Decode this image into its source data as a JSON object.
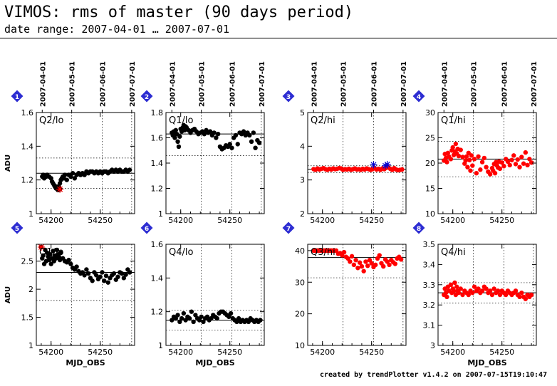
{
  "page": {
    "title": "VIMOS: rms of master (90 days period)",
    "subtitle": "date range: 2007-04-01 … 2007-07-01",
    "footer": "created by trendPlotter v1.4.2 on 2007-07-15T19:10:47"
  },
  "colors": {
    "black": "#000000",
    "red": "#ff0000",
    "blue": "#0000cc",
    "badge": "#2d2dd2"
  },
  "top_date_labels": [
    "2007-04-01",
    "2007-05-01",
    "2007-06-01",
    "2007-07-01"
  ],
  "top_date_mjd": [
    54191,
    54221,
    54252,
    54282
  ],
  "chart_data": [
    {
      "type": "scatter",
      "badge": "1",
      "label": "Q2/lo",
      "color": "#000000",
      "xlim": [
        54185,
        54285
      ],
      "ylim": [
        1,
        1.6
      ],
      "yticks": [
        "1",
        "1.2",
        "1.4",
        "1.6"
      ],
      "xticks": [
        "54200",
        "54250"
      ],
      "ylabel": "ADU",
      "xlabel": "",
      "median": 1.24,
      "band": [
        1.15,
        1.33
      ],
      "x": [
        54191,
        54192,
        54193,
        54195,
        54196,
        54198,
        54200,
        54201,
        54202,
        54203,
        54204,
        54205,
        54206,
        54207,
        54208,
        54209,
        54210,
        54211,
        54212,
        54213,
        54214,
        54216,
        54218,
        54220,
        54222,
        54224,
        54226,
        54228,
        54230,
        54232,
        54234,
        54236,
        54238,
        54240,
        54242,
        54244,
        54246,
        54248,
        54250,
        54252,
        54254,
        54256,
        54258,
        54260,
        54262,
        54264,
        54266,
        54268,
        54270,
        54272,
        54274,
        54276,
        54278,
        54280
      ],
      "y": [
        1.22,
        1.23,
        1.21,
        1.22,
        1.23,
        1.22,
        1.21,
        1.19,
        1.18,
        1.17,
        1.16,
        1.15,
        1.16,
        1.14,
        1.16,
        1.18,
        1.2,
        1.21,
        1.22,
        1.21,
        1.23,
        1.2,
        1.23,
        1.22,
        1.24,
        1.21,
        1.23,
        1.24,
        1.23,
        1.24,
        1.23,
        1.25,
        1.24,
        1.25,
        1.25,
        1.24,
        1.25,
        1.24,
        1.25,
        1.24,
        1.25,
        1.25,
        1.24,
        1.25,
        1.26,
        1.25,
        1.26,
        1.25,
        1.26,
        1.25,
        1.25,
        1.26,
        1.25,
        1.26
      ],
      "outliers": {
        "x": [
          54209
        ],
        "y": [
          1.145
        ]
      }
    },
    {
      "type": "scatter",
      "badge": "2",
      "label": "Q1/lo",
      "color": "#000000",
      "xlim": [
        54185,
        54285
      ],
      "ylim": [
        1,
        1.8
      ],
      "yticks": [
        "1",
        "1.2",
        "1.4",
        "1.6",
        "1.8"
      ],
      "xticks": [
        "54200",
        "54250"
      ],
      "ylabel": "",
      "xlabel": "",
      "median": 1.63,
      "band": [
        1.46,
        1.8
      ],
      "x": [
        54191,
        54192,
        54193,
        54194,
        54195,
        54196,
        54197,
        54198,
        54199,
        54200,
        54201,
        54202,
        54203,
        54204,
        54205,
        54206,
        54208,
        54210,
        54212,
        54214,
        54216,
        54218,
        54220,
        54222,
        54224,
        54226,
        54228,
        54230,
        54232,
        54234,
        54236,
        54238,
        54240,
        54242,
        54244,
        54246,
        54248,
        54250,
        54252,
        54254,
        54256,
        54258,
        54260,
        54262,
        54264,
        54266,
        54268,
        54270,
        54272,
        54274,
        54276,
        54278,
        54280
      ],
      "y": [
        1.64,
        1.62,
        1.65,
        1.6,
        1.66,
        1.63,
        1.57,
        1.53,
        1.61,
        1.67,
        1.65,
        1.68,
        1.7,
        1.66,
        1.69,
        1.68,
        1.66,
        1.64,
        1.66,
        1.67,
        1.65,
        1.63,
        1.64,
        1.65,
        1.63,
        1.66,
        1.64,
        1.65,
        1.62,
        1.64,
        1.6,
        1.63,
        1.53,
        1.51,
        1.52,
        1.54,
        1.53,
        1.55,
        1.52,
        1.6,
        1.62,
        1.55,
        1.64,
        1.63,
        1.65,
        1.62,
        1.64,
        1.62,
        1.57,
        1.64,
        1.52,
        1.58,
        1.56
      ]
    },
    {
      "type": "scatter",
      "badge": "3",
      "label": "Q2/hi",
      "color": "#ff0000",
      "xlim": [
        54185,
        54285
      ],
      "ylim": [
        2,
        5
      ],
      "yticks": [
        "2",
        "3",
        "4",
        "5"
      ],
      "xticks": [
        "54200",
        "54250"
      ],
      "ylabel": "",
      "xlabel": "",
      "median": 3.32,
      "band": [
        3.22,
        3.42
      ],
      "x": [
        54191,
        54193,
        54195,
        54197,
        54199,
        54201,
        54203,
        54205,
        54207,
        54209,
        54211,
        54213,
        54215,
        54217,
        54219,
        54221,
        54223,
        54225,
        54227,
        54229,
        54231,
        54233,
        54235,
        54237,
        54239,
        54241,
        54243,
        54245,
        54247,
        54249,
        54251,
        54253,
        54255,
        54257,
        54259,
        54261,
        54263,
        54265,
        54267,
        54269,
        54271,
        54273,
        54275,
        54277,
        54279,
        54281
      ],
      "y": [
        3.32,
        3.3,
        3.34,
        3.31,
        3.33,
        3.35,
        3.32,
        3.3,
        3.33,
        3.31,
        3.34,
        3.32,
        3.33,
        3.35,
        3.34,
        3.3,
        3.32,
        3.31,
        3.33,
        3.3,
        3.32,
        3.34,
        3.31,
        3.32,
        3.3,
        3.33,
        3.31,
        3.34,
        3.32,
        3.3,
        3.32,
        3.35,
        3.31,
        3.33,
        3.3,
        3.34,
        3.32,
        3.36,
        3.38,
        3.33,
        3.3,
        3.35,
        3.31,
        3.29,
        3.3,
        3.31
      ],
      "outliers": {
        "x": [
          54252,
          54264,
          54266
        ],
        "y": [
          3.45,
          3.42,
          3.46
        ],
        "color": "#0000cc"
      }
    },
    {
      "type": "scatter",
      "badge": "4",
      "label": "Q1/hi",
      "color": "#ff0000",
      "xlim": [
        54185,
        54285
      ],
      "ylim": [
        10,
        30
      ],
      "yticks": [
        "10",
        "15",
        "20",
        "25",
        "30"
      ],
      "xticks": [
        "54200",
        "54250"
      ],
      "ylabel": "",
      "xlabel": "",
      "median": 20.8,
      "band": [
        17.3,
        24.3
      ],
      "x": [
        54191,
        54192,
        54193,
        54194,
        54195,
        54196,
        54198,
        54199,
        54200,
        54201,
        54202,
        54203,
        54204,
        54205,
        54206,
        54208,
        54210,
        54212,
        54213,
        54214,
        54215,
        54216,
        54217,
        54218,
        54219,
        54220,
        54222,
        54224,
        54226,
        54228,
        54230,
        54232,
        54234,
        54236,
        54238,
        54240,
        54241,
        54242,
        54243,
        54244,
        54245,
        54246,
        54247,
        54248,
        54250,
        54252,
        54254,
        54256,
        54258,
        54260,
        54262,
        54264,
        54266,
        54268,
        54270,
        54272,
        54274,
        54276,
        54278,
        54280
      ],
      "y": [
        20.5,
        21.8,
        21,
        20.2,
        22,
        21.3,
        20.8,
        22.5,
        23.1,
        21.6,
        22.3,
        23.8,
        21.9,
        22.8,
        21.4,
        22.6,
        21.2,
        19.9,
        20.5,
        21.3,
        19.2,
        22,
        20.6,
        18.5,
        21.5,
        19.5,
        20.8,
        18,
        21.3,
        18.7,
        20.2,
        21,
        19.2,
        18.3,
        17.8,
        19,
        18.5,
        19.8,
        18,
        20.2,
        19.5,
        19.1,
        20.3,
        18.9,
        20.1,
        19.4,
        20.8,
        20.3,
        19.6,
        20.6,
        21.5,
        19.8,
        20.7,
        19.2,
        21.2,
        19.9,
        22.1,
        19.6,
        20.8,
        20.1
      ]
    },
    {
      "type": "scatter",
      "badge": "5",
      "label": "Q1/lo",
      "color": "#000000",
      "xlim": [
        54185,
        54285
      ],
      "ylim": [
        1,
        2.8
      ],
      "yticks": [
        "1",
        "1.5",
        "2",
        "2.5"
      ],
      "xticks": [
        "54200",
        "54250"
      ],
      "ylabel": "ADU",
      "xlabel": "MJD_OBS",
      "median": 2.3,
      "band": [
        1.8,
        2.8
      ],
      "x": [
        54191,
        54192,
        54193,
        54194,
        54195,
        54196,
        54197,
        54198,
        54199,
        54200,
        54201,
        54202,
        54203,
        54204,
        54205,
        54206,
        54207,
        54208,
        54209,
        54210,
        54212,
        54214,
        54216,
        54218,
        54220,
        54222,
        54224,
        54226,
        54228,
        54230,
        54232,
        54234,
        54236,
        54238,
        54240,
        54242,
        54244,
        54246,
        54248,
        54250,
        54252,
        54254,
        54256,
        54258,
        54260,
        54262,
        54264,
        54266,
        54268,
        54270,
        54272,
        54274,
        54276,
        54278,
        54280
      ],
      "y": [
        2.55,
        2.6,
        2.45,
        2.7,
        2.5,
        2.65,
        2.58,
        2.52,
        2.62,
        2.45,
        2.55,
        2.68,
        2.5,
        2.6,
        2.55,
        2.7,
        2.62,
        2.58,
        2.52,
        2.65,
        2.55,
        2.5,
        2.48,
        2.52,
        2.45,
        2.38,
        2.35,
        2.4,
        2.32,
        2.28,
        2.3,
        2.25,
        2.35,
        2.28,
        2.2,
        2.15,
        2.3,
        2.25,
        2.18,
        2.22,
        2.3,
        2.15,
        2.24,
        2.12,
        2.2,
        2.25,
        2.28,
        2.17,
        2.22,
        2.3,
        2.28,
        2.2,
        2.26,
        2.35,
        2.3
      ],
      "outliers": {
        "x": [
          54190
        ],
        "y": [
          2.75
        ]
      }
    },
    {
      "type": "scatter",
      "badge": "6",
      "label": "Q4/lo",
      "color": "#000000",
      "xlim": [
        54185,
        54285
      ],
      "ylim": [
        1,
        1.6
      ],
      "yticks": [
        "1",
        "1.2",
        "1.4",
        "1.6"
      ],
      "xticks": [
        "54200",
        "54250"
      ],
      "ylabel": "",
      "xlabel": "MJD_OBS",
      "median": 1.15,
      "band": [
        1.09,
        1.21
      ],
      "x": [
        54191,
        54193,
        54195,
        54197,
        54199,
        54201,
        54203,
        54205,
        54207,
        54209,
        54211,
        54213,
        54215,
        54217,
        54219,
        54221,
        54223,
        54225,
        54227,
        54229,
        54231,
        54233,
        54235,
        54237,
        54239,
        54241,
        54243,
        54245,
        54247,
        54249,
        54251,
        54253,
        54255,
        54257,
        54259,
        54261,
        54263,
        54265,
        54267,
        54269,
        54271,
        54273,
        54275,
        54277,
        54279,
        54281
      ],
      "y": [
        1.15,
        1.17,
        1.16,
        1.18,
        1.14,
        1.16,
        1.19,
        1.15,
        1.17,
        1.16,
        1.2,
        1.14,
        1.18,
        1.16,
        1.15,
        1.17,
        1.14,
        1.16,
        1.17,
        1.15,
        1.16,
        1.18,
        1.17,
        1.16,
        1.19,
        1.2,
        1.2,
        1.19,
        1.18,
        1.17,
        1.19,
        1.16,
        1.15,
        1.14,
        1.16,
        1.14,
        1.15,
        1.14,
        1.15,
        1.14,
        1.16,
        1.15,
        1.14,
        1.15,
        1.14,
        1.15
      ]
    },
    {
      "type": "scatter",
      "badge": "7",
      "label": "Q3/hi",
      "color": "#ff0000",
      "xlim": [
        54185,
        54285
      ],
      "ylim": [
        10,
        42
      ],
      "yticks": [
        "10",
        "20",
        "30",
        "40"
      ],
      "xticks": [
        "54200",
        "54250"
      ],
      "ylabel": "",
      "xlabel": "",
      "median": 37.8,
      "band": [
        31.4,
        44
      ],
      "x": [
        54191,
        54192,
        54193,
        54194,
        54195,
        54196,
        54197,
        54198,
        54199,
        54200,
        54201,
        54202,
        54203,
        54204,
        54205,
        54206,
        54207,
        54208,
        54209,
        54210,
        54212,
        54214,
        54216,
        54218,
        54220,
        54222,
        54224,
        54226,
        54228,
        54230,
        54232,
        54234,
        54236,
        54238,
        54240,
        54242,
        54244,
        54246,
        54248,
        54250,
        54252,
        54254,
        54256,
        54258,
        54260,
        54262,
        54264,
        54266,
        54268,
        54270,
        54272,
        54274,
        54276,
        54278,
        54280
      ],
      "y": [
        40,
        40,
        40,
        40,
        40,
        40,
        40,
        40,
        40,
        40,
        40,
        40,
        40,
        40,
        40,
        40,
        40,
        40,
        40,
        40,
        40,
        40,
        39,
        39.2,
        38.5,
        39.5,
        38,
        37.5,
        36.5,
        38.2,
        35.5,
        37,
        34.5,
        36.2,
        35,
        33.5,
        36.5,
        35.2,
        37,
        36,
        34.8,
        35.5,
        37.5,
        38.5,
        36,
        35,
        37.2,
        36.5,
        35.5,
        37,
        36.3,
        35.8,
        37.5,
        38,
        37.2
      ]
    },
    {
      "type": "scatter",
      "badge": "8",
      "label": "Q4/hi",
      "color": "#ff0000",
      "xlim": [
        54185,
        54285
      ],
      "ylim": [
        3,
        3.5
      ],
      "yticks": [
        "3",
        "3.1",
        "3.2",
        "3.3",
        "3.4",
        "3.5"
      ],
      "xticks": [
        "54200",
        "54250"
      ],
      "ylabel": "",
      "xlabel": "MJD_OBS",
      "median": 3.26,
      "band": [
        3.21,
        3.31
      ],
      "x": [
        54191,
        54192,
        54193,
        54194,
        54195,
        54196,
        54198,
        54199,
        54200,
        54201,
        54202,
        54203,
        54204,
        54205,
        54206,
        54208,
        54210,
        54212,
        54214,
        54216,
        54218,
        54220,
        54222,
        54224,
        54226,
        54228,
        54230,
        54232,
        54234,
        54236,
        54238,
        54240,
        54242,
        54244,
        54246,
        54248,
        54250,
        54252,
        54254,
        54256,
        54258,
        54260,
        54262,
        54264,
        54266,
        54268,
        54270,
        54272,
        54274,
        54276,
        54278,
        54280
      ],
      "y": [
        3.25,
        3.28,
        3.26,
        3.24,
        3.29,
        3.27,
        3.3,
        3.26,
        3.28,
        3.27,
        3.31,
        3.25,
        3.29,
        3.27,
        3.26,
        3.28,
        3.25,
        3.27,
        3.26,
        3.25,
        3.27,
        3.26,
        3.29,
        3.27,
        3.28,
        3.26,
        3.27,
        3.29,
        3.28,
        3.26,
        3.27,
        3.25,
        3.28,
        3.26,
        3.27,
        3.25,
        3.27,
        3.26,
        3.25,
        3.27,
        3.26,
        3.25,
        3.26,
        3.27,
        3.25,
        3.24,
        3.26,
        3.24,
        3.23,
        3.25,
        3.24,
        3.25
      ]
    }
  ]
}
